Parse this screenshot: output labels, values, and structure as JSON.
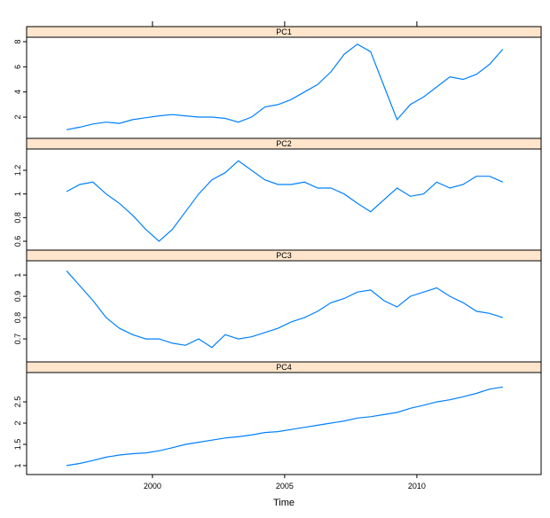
{
  "chart_data": [
    {
      "type": "line",
      "title": "PC1",
      "color": "#0080ff",
      "x": [
        1996.75,
        1997.25,
        1997.75,
        1998.25,
        1998.75,
        1999.25,
        1999.75,
        2000.25,
        2000.75,
        2001.25,
        2001.75,
        2002.25,
        2002.75,
        2003.25,
        2003.75,
        2004.25,
        2004.75,
        2005.25,
        2005.75,
        2006.25,
        2006.75,
        2007.25,
        2007.75,
        2008.25,
        2008.75,
        2009.25,
        2009.75,
        2010.25,
        2010.75,
        2011.25,
        2011.75,
        2012.25,
        2012.75,
        2013.25
      ],
      "values": [
        1.0,
        1.2,
        1.45,
        1.6,
        1.5,
        1.8,
        1.95,
        2.1,
        2.2,
        2.1,
        2.0,
        2.0,
        1.9,
        1.6,
        2.0,
        2.8,
        3.0,
        3.4,
        4.0,
        4.6,
        5.6,
        7.0,
        7.8,
        7.2,
        4.5,
        1.8,
        3.0,
        3.6,
        4.4,
        5.2,
        5.0,
        5.4,
        6.2,
        7.4
      ],
      "xlim": [
        1995.24,
        2014.7
      ],
      "ylim": [
        0.31,
        8.35
      ],
      "yticks": [
        2,
        4,
        6,
        8
      ]
    },
    {
      "type": "line",
      "title": "PC2",
      "color": "#0080ff",
      "x": [
        1996.75,
        1997.25,
        1997.75,
        1998.25,
        1998.75,
        1999.25,
        1999.75,
        2000.25,
        2000.75,
        2001.25,
        2001.75,
        2002.25,
        2002.75,
        2003.25,
        2003.75,
        2004.25,
        2004.75,
        2005.25,
        2005.75,
        2006.25,
        2006.75,
        2007.25,
        2007.75,
        2008.25,
        2008.75,
        2009.25,
        2009.75,
        2010.25,
        2010.75,
        2011.25,
        2011.75,
        2012.25,
        2012.75,
        2013.25
      ],
      "values": [
        1.02,
        1.08,
        1.1,
        1.0,
        0.92,
        0.82,
        0.7,
        0.6,
        0.7,
        0.85,
        1.0,
        1.12,
        1.18,
        1.28,
        1.2,
        1.12,
        1.08,
        1.08,
        1.1,
        1.05,
        1.05,
        1.0,
        0.92,
        0.85,
        0.95,
        1.05,
        0.98,
        1.0,
        1.1,
        1.05,
        1.08,
        1.15,
        1.15,
        1.1
      ],
      "xlim": [
        1995.24,
        2014.7
      ],
      "ylim": [
        0.525,
        1.38
      ],
      "yticks": [
        0.6,
        0.8,
        1.0,
        1.2
      ]
    },
    {
      "type": "line",
      "title": "PC3",
      "color": "#0080ff",
      "x": [
        1996.75,
        1997.25,
        1997.75,
        1998.25,
        1998.75,
        1999.25,
        1999.75,
        2000.25,
        2000.75,
        2001.25,
        2001.75,
        2002.25,
        2002.75,
        2003.25,
        2003.75,
        2004.25,
        2004.75,
        2005.25,
        2005.75,
        2006.25,
        2006.75,
        2007.25,
        2007.75,
        2008.25,
        2008.75,
        2009.25,
        2009.75,
        2010.25,
        2010.75,
        2011.25,
        2011.75,
        2012.25,
        2012.75,
        2013.25
      ],
      "values": [
        1.02,
        0.95,
        0.88,
        0.8,
        0.75,
        0.72,
        0.7,
        0.7,
        0.68,
        0.67,
        0.7,
        0.66,
        0.72,
        0.7,
        0.71,
        0.73,
        0.75,
        0.78,
        0.8,
        0.83,
        0.87,
        0.89,
        0.92,
        0.93,
        0.88,
        0.85,
        0.9,
        0.92,
        0.94,
        0.9,
        0.87,
        0.83,
        0.82,
        0.8
      ],
      "xlim": [
        1995.24,
        2014.7
      ],
      "ylim": [
        0.592,
        1.067
      ],
      "yticks": [
        0.7,
        0.8,
        0.9,
        1.0
      ]
    },
    {
      "type": "line",
      "title": "PC4",
      "color": "#0080ff",
      "x": [
        1996.75,
        1997.25,
        1997.75,
        1998.25,
        1998.75,
        1999.25,
        1999.75,
        2000.25,
        2000.75,
        2001.25,
        2001.75,
        2002.25,
        2002.75,
        2003.25,
        2003.75,
        2004.25,
        2004.75,
        2005.25,
        2005.75,
        2006.25,
        2006.75,
        2007.25,
        2007.75,
        2008.25,
        2008.75,
        2009.25,
        2009.75,
        2010.25,
        2010.75,
        2011.25,
        2011.75,
        2012.25,
        2012.75,
        2013.25
      ],
      "values": [
        1.0,
        1.05,
        1.12,
        1.2,
        1.25,
        1.28,
        1.3,
        1.35,
        1.42,
        1.5,
        1.55,
        1.6,
        1.65,
        1.68,
        1.72,
        1.78,
        1.8,
        1.85,
        1.9,
        1.95,
        2.0,
        2.05,
        2.12,
        2.15,
        2.2,
        2.25,
        2.35,
        2.42,
        2.5,
        2.55,
        2.62,
        2.7,
        2.8,
        2.85
      ],
      "xlim": [
        1995.24,
        2014.7
      ],
      "ylim": [
        0.79,
        3.19
      ],
      "yticks": [
        1.0,
        1.5,
        2.0,
        2.5
      ],
      "xticks": [
        2000,
        2005,
        2010
      ],
      "xlabel": "Time"
    }
  ]
}
